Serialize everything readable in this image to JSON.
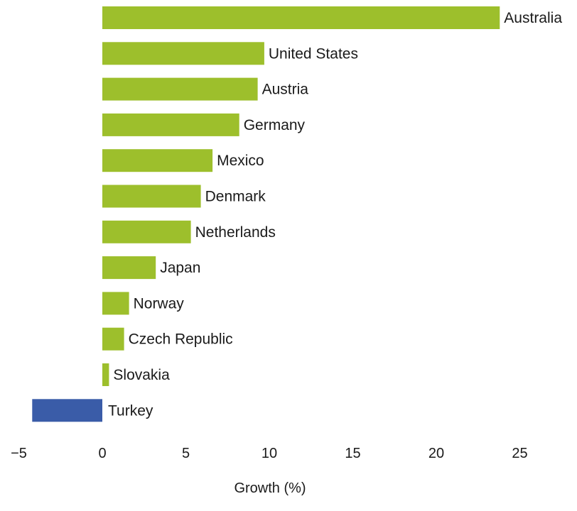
{
  "chart_data": {
    "type": "bar",
    "orientation": "horizontal",
    "categories": [
      "Australia",
      "United States",
      "Austria",
      "Germany",
      "Mexico",
      "Denmark",
      "Netherlands",
      "Japan",
      "Norway",
      "Czech Republic",
      "Slovakia",
      "Turkey"
    ],
    "values": [
      23.8,
      9.7,
      9.3,
      8.2,
      6.6,
      5.9,
      5.3,
      3.2,
      1.6,
      1.3,
      0.4,
      -4.2
    ],
    "xlabel": "Growth (%)",
    "ylabel": "",
    "xlim": [
      -5,
      25
    ],
    "xticks": [
      -5,
      0,
      5,
      10,
      15,
      20,
      25
    ],
    "xtick_labels": [
      "−5",
      "0",
      "5",
      "10",
      "15",
      "20",
      "25"
    ],
    "grid": false,
    "colors": {
      "positive": "#9dbf2c",
      "negative": "#3a5ca8"
    }
  }
}
